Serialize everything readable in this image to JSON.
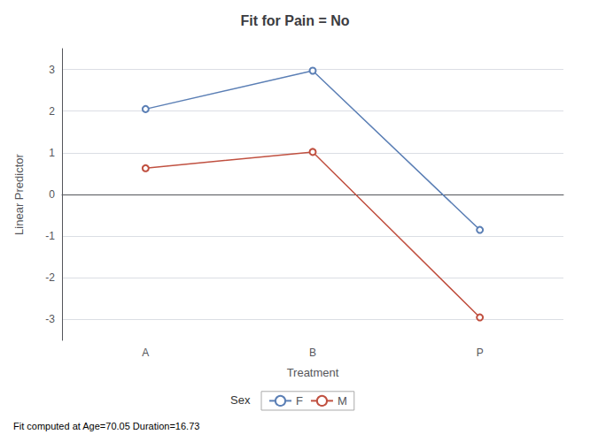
{
  "chart_data": {
    "type": "line",
    "title": "Fit for Pain = No",
    "xlabel": "Treatment",
    "ylabel": "Linear Predictor",
    "annotations": [
      "Fit computed at Age=70.05 Duration=16.73"
    ],
    "legend_title": "Sex",
    "categories": [
      "A",
      "B",
      "P"
    ],
    "series": [
      {
        "name": "F",
        "color": "#5b7fb5",
        "values": [
          2.05,
          2.97,
          -0.85
        ],
        "marker": "circle"
      },
      {
        "name": "M",
        "color": "#c05040",
        "values": [
          0.63,
          1.02,
          -2.95
        ],
        "marker": "circle"
      }
    ],
    "ylim": [
      -3.5,
      3.5
    ],
    "yticks": [
      -3,
      -2,
      -1,
      0,
      1,
      2,
      3
    ],
    "grid": true,
    "legend": "bottom"
  }
}
